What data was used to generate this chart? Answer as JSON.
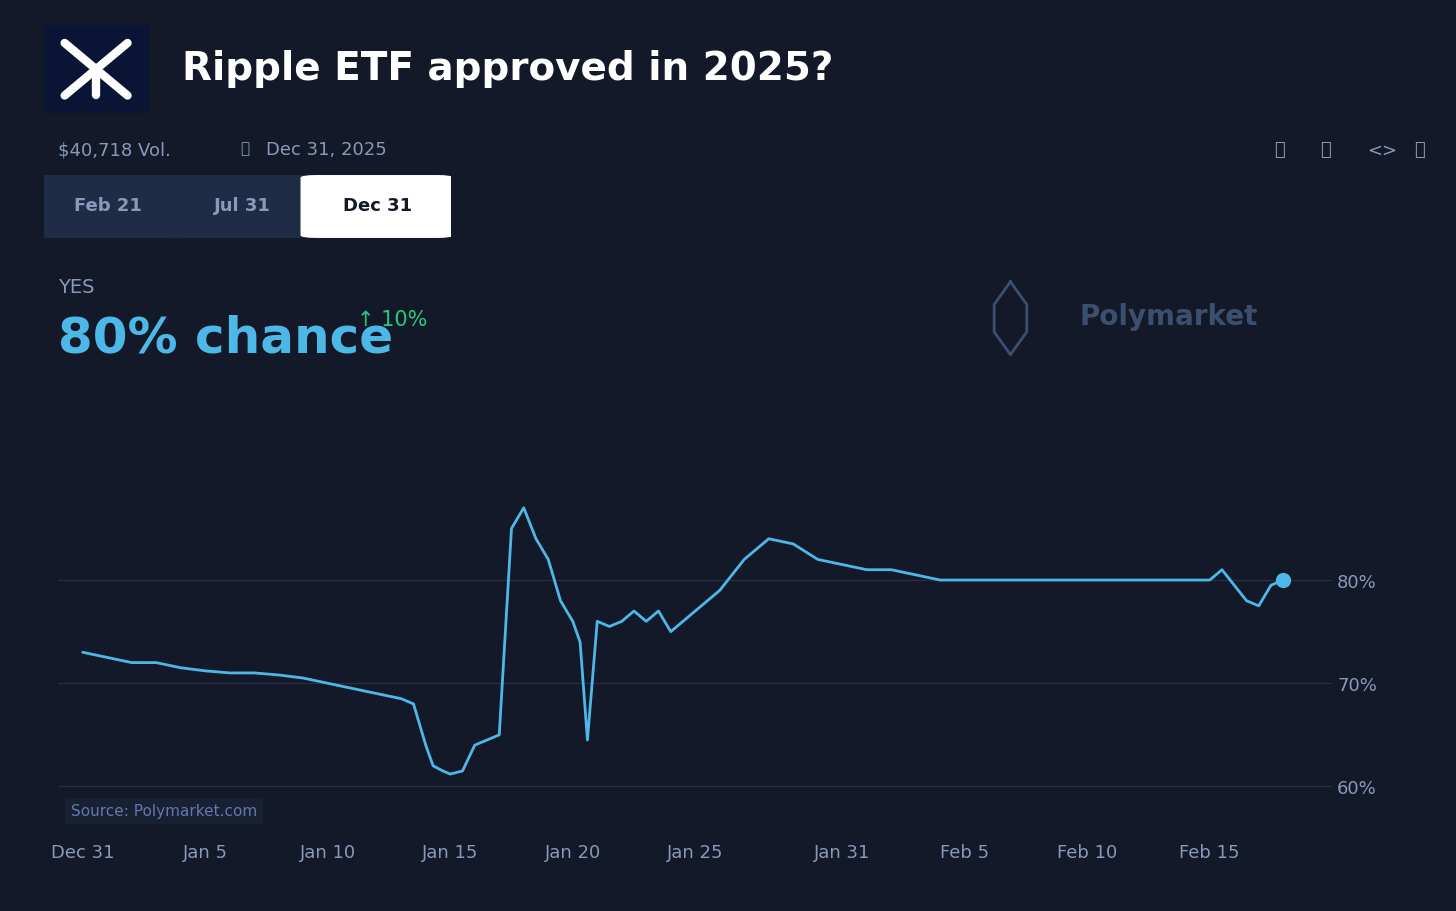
{
  "bg_color": "#131928",
  "line_color": "#4db8e8",
  "grid_color": "#253048",
  "title": "Ripple ETF approved in 2025?",
  "vol_text": "$40,718 Vol.",
  "date_text": "Dec 31, 2025",
  "yes_label": "YES",
  "chance_text": "80% chance",
  "change_text": "↑ 10%",
  "change_color": "#26c97a",
  "source_text": "Source: Polymarket.com",
  "polymarket_text": "Polymarket",
  "tab_labels": [
    "Feb 21",
    "Jul 31",
    "Dec 31"
  ],
  "active_tab": "Dec 31",
  "ylim": [
    55,
    93
  ],
  "ytick_vals": [
    60,
    70,
    80
  ],
  "ytick_labels": [
    "60%",
    "70%",
    "80%"
  ],
  "xtick_positions": [
    0,
    5,
    10,
    15,
    20,
    25,
    31,
    36,
    41,
    46
  ],
  "xtick_labels": [
    "Dec 31",
    "Jan 5",
    "Jan 10",
    "Jan 15",
    "Jan 20",
    "Jan 25",
    "Jan 31",
    "Feb 5",
    "Feb 10",
    "Feb 15"
  ],
  "x_pts": [
    0,
    1,
    2,
    3,
    4,
    5,
    6,
    7,
    8,
    9,
    10,
    11,
    12,
    13,
    13.5,
    14,
    14.3,
    14.7,
    15,
    15.5,
    16,
    17,
    17.5,
    18,
    18.5,
    19,
    19.5,
    20,
    20.3,
    20.6,
    21,
    21.5,
    22,
    22.5,
    23,
    23.5,
    24,
    24.5,
    25,
    25.5,
    26,
    27,
    28,
    29,
    30,
    31,
    32,
    33,
    34,
    35,
    36,
    37,
    38,
    39,
    40,
    41,
    42,
    43,
    44,
    45,
    46,
    46.5,
    47,
    47.5,
    48,
    48.5,
    49
  ],
  "y_pts": [
    73,
    72.5,
    72,
    72,
    71.5,
    71.2,
    71,
    71,
    70.8,
    70.5,
    70,
    69.5,
    69,
    68.5,
    68,
    64,
    62,
    61.5,
    61.2,
    61.5,
    64,
    65,
    85,
    87,
    84,
    82,
    78,
    76,
    74,
    64.5,
    76,
    75.5,
    76,
    77,
    76,
    77,
    75,
    76,
    77,
    78,
    79,
    82,
    84,
    83.5,
    82,
    81.5,
    81,
    81,
    80.5,
    80,
    80,
    80,
    80,
    80,
    80,
    80,
    80,
    80,
    80,
    80,
    80,
    81,
    79.5,
    78,
    77.5,
    79.5,
    80
  ],
  "title_fontsize": 28,
  "tick_fontsize": 13,
  "chance_fontsize": 36,
  "yes_fontsize": 14,
  "change_fontsize": 15,
  "end_dot_color": "#4db8e8",
  "end_dot_size": 10,
  "tab_inactive_bg": "#1e2d45",
  "tab_active_bg": "#ffffff",
  "tab_inactive_fg": "#8899bb",
  "tab_active_fg": "#131928"
}
